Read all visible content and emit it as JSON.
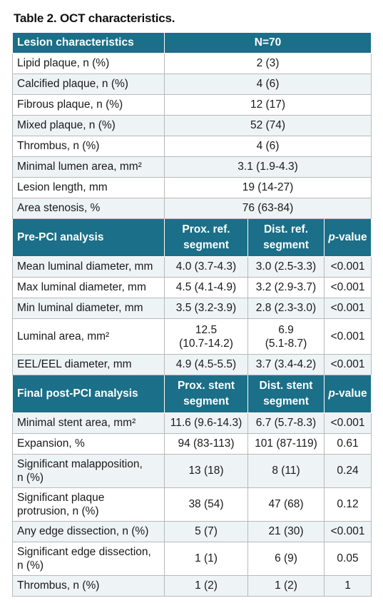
{
  "title": "Table 2. OCT characteristics.",
  "section1": {
    "header": {
      "label": "Lesion characteristics",
      "n": "N=70"
    },
    "rows": [
      {
        "label": "Lipid plaque, n (%)",
        "value": "2 (3)"
      },
      {
        "label": "Calcified plaque, n (%)",
        "value": "4 (6)"
      },
      {
        "label": "Fibrous plaque, n (%)",
        "value": "12 (17)"
      },
      {
        "label": "Mixed plaque, n (%)",
        "value": "52 (74)"
      },
      {
        "label": "Thrombus, n (%)",
        "value": "4 (6)"
      },
      {
        "label": "Minimal lumen area, mm²",
        "value": "3.1 (1.9-4.3)"
      },
      {
        "label": "Lesion length, mm",
        "value": "19 (14-27)"
      },
      {
        "label": "Area stenosis, %",
        "value": "76 (63-84)"
      }
    ]
  },
  "section2": {
    "header": {
      "label": "Pre-PCI analysis",
      "col1": "Prox. ref. segment",
      "col2": "Dist. ref. segment",
      "p_italic": "p",
      "p_rest": "-value"
    },
    "rows": [
      {
        "label": "Mean luminal diameter, mm",
        "a": "4.0 (3.7-4.3)",
        "b": "3.0 (2.5-3.3)",
        "p": "<0.001"
      },
      {
        "label": "Max luminal diameter, mm",
        "a": "4.5 (4.1-4.9)",
        "b": "3.2 (2.9-3.7)",
        "p": "<0.001"
      },
      {
        "label": "Min luminal diameter, mm",
        "a": "3.5 (3.2-3.9)",
        "b": "2.8 (2.3-3.0)",
        "p": "<0.001"
      },
      {
        "label": "Luminal area, mm²",
        "a1": "12.5",
        "a2": "(10.7-14.2)",
        "b1": "6.9",
        "b2": "(5.1-8.7)",
        "p": "<0.001"
      },
      {
        "label": "EEL/EEL diameter, mm",
        "a": "4.9 (4.5-5.5)",
        "b": "3.7 (3.4-4.2)",
        "p": "<0.001"
      }
    ]
  },
  "section3": {
    "header": {
      "label": "Final post-PCI analysis",
      "col1": "Prox. stent segment",
      "col2": "Dist. stent segment",
      "p_italic": "p",
      "p_rest": "-value"
    },
    "rows": [
      {
        "label": "Minimal stent area, mm²",
        "a": "11.6 (9.6-14.3)",
        "b": "6.7 (5.7-8.3)",
        "p": "<0.001"
      },
      {
        "label": "Expansion, %",
        "a": "94 (83-113)",
        "b": "101 (87-119)",
        "p": "0.61"
      },
      {
        "label1": "Significant malapposition,",
        "label2": "n (%)",
        "a": "13 (18)",
        "b": "8 (11)",
        "p": "0.24"
      },
      {
        "label1": "Significant plaque",
        "label2": "protrusion, n (%)",
        "a": "38 (54)",
        "b": "47 (68)",
        "p": "0.12"
      },
      {
        "label": "Any edge dissection, n (%)",
        "a": "5 (7)",
        "b": "21 (30)",
        "p": "<0.001"
      },
      {
        "label1": "Significant edge dissection,",
        "label2": "n (%)",
        "a": "1 (1)",
        "b": "6 (9)",
        "p": "0.05"
      },
      {
        "label": "Thrombus, n (%)",
        "a": "1 (2)",
        "b": "1 (2)",
        "p": "1"
      }
    ]
  }
}
